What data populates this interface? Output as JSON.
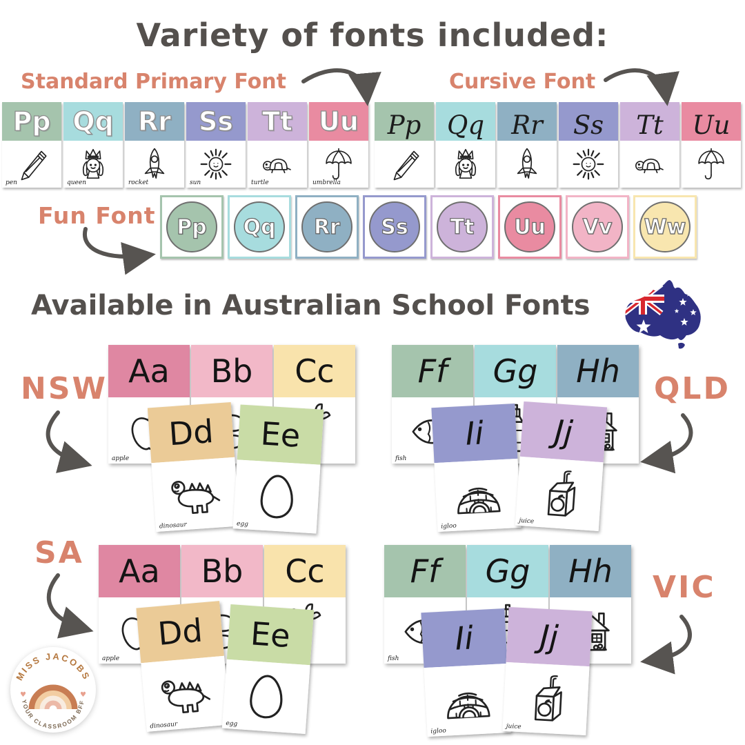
{
  "title": "Variety of fonts included:",
  "subtitle": "Available in Australian School Fonts",
  "annotations": {
    "standard": "Standard Primary Font",
    "cursive": "Cursive Font",
    "fun": "Fun Font"
  },
  "colors": {
    "title": "#54504d",
    "annotation": "#d8836c",
    "arrow": "#575451",
    "green": "#a5c4ad",
    "teal": "#a7dcde",
    "blueGray": "#8fb0c3",
    "periwinkle": "#9599cd",
    "lavender": "#cdb3da",
    "pink": "#e98ba1",
    "lightPink": "#f2b4c6",
    "yellow": "#f8e6af",
    "rose": "#df87a2",
    "palePink": "#f2b8c8",
    "paleYellow": "#f9e3ac",
    "tan": "#ebcb97",
    "sage": "#c9dca6",
    "flagNavy": "#2f3183",
    "flagRed": "#d8272e"
  },
  "standard_cards": [
    {
      "letters": "Pp",
      "word": "pen",
      "icon": "pencil",
      "color": "green"
    },
    {
      "letters": "Qq",
      "word": "queen",
      "icon": "queen",
      "color": "teal"
    },
    {
      "letters": "Rr",
      "word": "rocket",
      "icon": "rocket",
      "color": "blueGray"
    },
    {
      "letters": "Ss",
      "word": "sun",
      "icon": "sun",
      "color": "periwinkle"
    },
    {
      "letters": "Tt",
      "word": "turtle",
      "icon": "turtle",
      "color": "lavender"
    },
    {
      "letters": "Uu",
      "word": "umbrella",
      "icon": "umbrella",
      "color": "pink"
    }
  ],
  "cursive_cards": [
    {
      "letters": "Pp",
      "word": "",
      "icon": "pencil",
      "color": "green"
    },
    {
      "letters": "Qq",
      "word": "",
      "icon": "queen",
      "color": "teal"
    },
    {
      "letters": "Rr",
      "word": "",
      "icon": "rocket",
      "color": "blueGray"
    },
    {
      "letters": "Ss",
      "word": "",
      "icon": "sun",
      "color": "periwinkle"
    },
    {
      "letters": "Tt",
      "word": "",
      "icon": "turtle",
      "color": "lavender"
    },
    {
      "letters": "Uu",
      "word": "",
      "icon": "umbrella",
      "color": "pink"
    }
  ],
  "fun_cards": [
    {
      "letters": "Pp",
      "color": "green"
    },
    {
      "letters": "Qq",
      "color": "teal"
    },
    {
      "letters": "Rr",
      "color": "blueGray"
    },
    {
      "letters": "Ss",
      "color": "periwinkle"
    },
    {
      "letters": "Tt",
      "color": "lavender"
    },
    {
      "letters": "Uu",
      "color": "pink"
    },
    {
      "letters": "Vv",
      "color": "lightPink"
    },
    {
      "letters": "Ww",
      "color": "yellow"
    }
  ],
  "font_sets": [
    {
      "label": "NSW",
      "italic": false,
      "back": [
        {
          "letters": "Aa",
          "word": "apple",
          "icon": "apple",
          "color": "rose"
        },
        {
          "letters": "Bb",
          "word": "",
          "icon": "ball",
          "color": "palePink"
        },
        {
          "letters": "Cc",
          "word": "",
          "icon": "carrot",
          "color": "paleYellow"
        }
      ],
      "front": [
        {
          "letters": "Dd",
          "word": "dinosaur",
          "icon": "dinosaur",
          "color": "tan"
        },
        {
          "letters": "Ee",
          "word": "egg",
          "icon": "egg",
          "color": "sage"
        }
      ]
    },
    {
      "label": "QLD",
      "italic": true,
      "back": [
        {
          "letters": "Ff",
          "word": "fish",
          "icon": "fish",
          "color": "green"
        },
        {
          "letters": "Gg",
          "word": "",
          "icon": "glue",
          "color": "teal"
        },
        {
          "letters": "Hh",
          "word": "",
          "icon": "house",
          "color": "blueGray"
        }
      ],
      "front": [
        {
          "letters": "Ii",
          "word": "igloo",
          "icon": "igloo",
          "color": "periwinkle"
        },
        {
          "letters": "Jj",
          "word": "juice",
          "icon": "juice",
          "color": "lavender"
        }
      ]
    },
    {
      "label": "SA",
      "italic": false,
      "back": [
        {
          "letters": "Aa",
          "word": "apple",
          "icon": "apple",
          "color": "rose"
        },
        {
          "letters": "Bb",
          "word": "",
          "icon": "ball",
          "color": "palePink"
        },
        {
          "letters": "Cc",
          "word": "",
          "icon": "carrot",
          "color": "paleYellow"
        }
      ],
      "front": [
        {
          "letters": "Dd",
          "word": "dinosaur",
          "icon": "dinosaur",
          "color": "tan"
        },
        {
          "letters": "Ee",
          "word": "egg",
          "icon": "egg",
          "color": "sage"
        }
      ]
    },
    {
      "label": "VIC",
      "italic": true,
      "back": [
        {
          "letters": "Ff",
          "word": "fish",
          "icon": "fish",
          "color": "green"
        },
        {
          "letters": "Gg",
          "word": "",
          "icon": "glue",
          "color": "teal"
        },
        {
          "letters": "Hh",
          "word": "",
          "icon": "house",
          "color": "blueGray"
        }
      ],
      "front": [
        {
          "letters": "Ii",
          "word": "igloo",
          "icon": "igloo",
          "color": "periwinkle"
        },
        {
          "letters": "Jj",
          "word": "juice",
          "icon": "juice",
          "color": "lavender"
        }
      ]
    }
  ],
  "logo": {
    "arc_top": "MISS JACOBS",
    "arc_bottom": "YOUR CLASSROOM BFF"
  }
}
